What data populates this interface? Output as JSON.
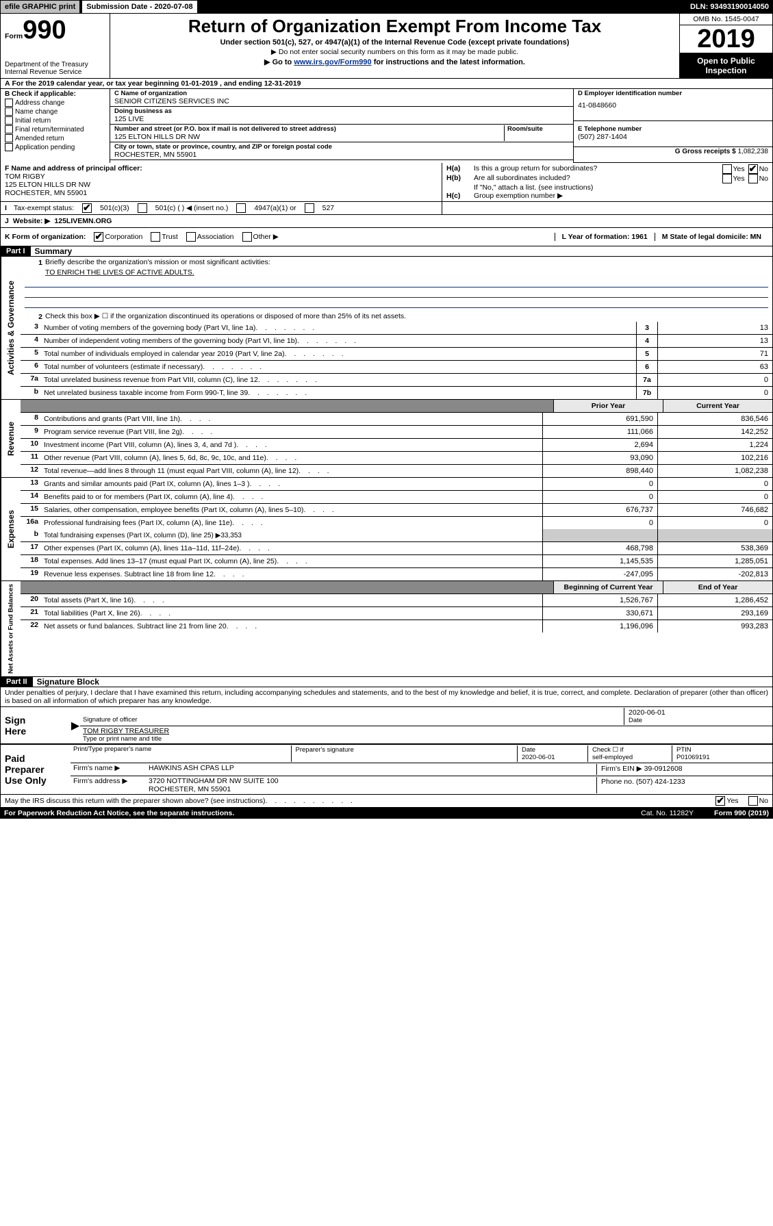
{
  "toolbar": {
    "efile": "efile GRAPHIC print",
    "submission_label": "Submission Date - 2020-07-08",
    "dln": "DLN: 93493190014050"
  },
  "header": {
    "form_label": "Form",
    "form_num": "990",
    "title": "Return of Organization Exempt From Income Tax",
    "subtitle1": "Under section 501(c), 527, or 4947(a)(1) of the Internal Revenue Code (except private foundations)",
    "subtitle2": "▶ Do not enter social security numbers on this form as it may be made public.",
    "subtitle3_pre": "▶ Go to ",
    "subtitle3_link": "www.irs.gov/Form990",
    "subtitle3_post": " for instructions and the latest information.",
    "dept1": "Department of the Treasury",
    "dept2": "Internal Revenue Service",
    "omb": "OMB No. 1545-0047",
    "year": "2019",
    "open_public": "Open to Public Inspection"
  },
  "row_A": {
    "label": "A",
    "text": "For the 2019 calendar year, or tax year beginning 01-01-2019    , and ending 12-31-2019"
  },
  "box_B": {
    "label": "B Check if applicable:",
    "items": [
      "Address change",
      "Name change",
      "Initial return",
      "Final return/terminated",
      "Amended return",
      "Application pending"
    ]
  },
  "box_C": {
    "name_lbl": "C Name of organization",
    "name": "SENIOR CITIZENS SERVICES INC",
    "dba_lbl": "Doing business as",
    "dba": "125 LIVE",
    "addr_lbl": "Number and street (or P.O. box if mail is not delivered to street address)",
    "room_lbl": "Room/suite",
    "addr": "125 ELTON HILLS DR NW",
    "city_lbl": "City or town, state or province, country, and ZIP or foreign postal code",
    "city": "ROCHESTER, MN  55901"
  },
  "box_D": {
    "lbl": "D Employer identification number",
    "val": "41-0848660"
  },
  "box_E": {
    "lbl": "E Telephone number",
    "val": "(507) 287-1404"
  },
  "box_G": {
    "lbl": "G Gross receipts $",
    "val": "1,082,238"
  },
  "box_F": {
    "lbl": "F Name and address of principal officer:",
    "name": "TOM RIGBY",
    "addr1": "125 ELTON HILLS DR NW",
    "addr2": "ROCHESTER, MN  55901"
  },
  "box_H": {
    "a_lbl": "H(a)",
    "a_txt": "Is this a group return for subordinates?",
    "b_lbl": "H(b)",
    "b_txt": "Are all subordinates included?",
    "note": "If \"No,\" attach a list. (see instructions)",
    "c_lbl": "H(c)",
    "c_txt": "Group exemption number ▶",
    "yes": "Yes",
    "no": "No"
  },
  "row_I": {
    "lbl": "I",
    "txt": "Tax-exempt status:",
    "o1": "501(c)(3)",
    "o2": "501(c) (   ) ◀ (insert no.)",
    "o3": "4947(a)(1) or",
    "o4": "527"
  },
  "row_J": {
    "lbl": "J",
    "txt": "Website: ▶",
    "val": "125LIVEMN.ORG"
  },
  "row_K": {
    "lbl": "K Form of organization:",
    "o1": "Corporation",
    "o2": "Trust",
    "o3": "Association",
    "o4": "Other ▶",
    "L": "L Year of formation: 1961",
    "M": "M State of legal domicile: MN"
  },
  "part1": {
    "label": "Part I",
    "title": "Summary"
  },
  "governance": {
    "line1_lbl": "1",
    "line1_txt": "Briefly describe the organization's mission or most significant activities:",
    "line1_val": "TO ENRICH THE LIVES OF ACTIVE ADULTS.",
    "line2_lbl": "2",
    "line2_txt": "Check this box ▶ ☐  if the organization discontinued its operations or disposed of more than 25% of its net assets.",
    "rows": [
      {
        "n": "3",
        "d": "Number of voting members of the governing body (Part VI, line 1a)",
        "box": "3",
        "v": "13"
      },
      {
        "n": "4",
        "d": "Number of independent voting members of the governing body (Part VI, line 1b)",
        "box": "4",
        "v": "13"
      },
      {
        "n": "5",
        "d": "Total number of individuals employed in calendar year 2019 (Part V, line 2a)",
        "box": "5",
        "v": "71"
      },
      {
        "n": "6",
        "d": "Total number of volunteers (estimate if necessary)",
        "box": "6",
        "v": "63"
      },
      {
        "n": "7a",
        "d": "Total unrelated business revenue from Part VIII, column (C), line 12",
        "box": "7a",
        "v": "0"
      },
      {
        "n": "b",
        "d": "Net unrelated business taxable income from Form 990-T, line 39",
        "box": "7b",
        "v": "0"
      }
    ]
  },
  "revenue": {
    "hdr_prior": "Prior Year",
    "hdr_current": "Current Year",
    "rows": [
      {
        "n": "8",
        "d": "Contributions and grants (Part VIII, line 1h)",
        "p": "691,590",
        "c": "836,546"
      },
      {
        "n": "9",
        "d": "Program service revenue (Part VIII, line 2g)",
        "p": "111,066",
        "c": "142,252"
      },
      {
        "n": "10",
        "d": "Investment income (Part VIII, column (A), lines 3, 4, and 7d )",
        "p": "2,694",
        "c": "1,224"
      },
      {
        "n": "11",
        "d": "Other revenue (Part VIII, column (A), lines 5, 6d, 8c, 9c, 10c, and 11e)",
        "p": "93,090",
        "c": "102,216"
      },
      {
        "n": "12",
        "d": "Total revenue—add lines 8 through 11 (must equal Part VIII, column (A), line 12)",
        "p": "898,440",
        "c": "1,082,238"
      }
    ]
  },
  "expenses": {
    "rows": [
      {
        "n": "13",
        "d": "Grants and similar amounts paid (Part IX, column (A), lines 1–3 )",
        "p": "0",
        "c": "0"
      },
      {
        "n": "14",
        "d": "Benefits paid to or for members (Part IX, column (A), line 4)",
        "p": "0",
        "c": "0"
      },
      {
        "n": "15",
        "d": "Salaries, other compensation, employee benefits (Part IX, column (A), lines 5–10)",
        "p": "676,737",
        "c": "746,682"
      },
      {
        "n": "16a",
        "d": "Professional fundraising fees (Part IX, column (A), line 11e)",
        "p": "0",
        "c": "0"
      }
    ],
    "line_b_n": "b",
    "line_b_d": "Total fundraising expenses (Part IX, column (D), line 25) ▶33,353",
    "rows2": [
      {
        "n": "17",
        "d": "Other expenses (Part IX, column (A), lines 11a–11d, 11f–24e)",
        "p": "468,798",
        "c": "538,369"
      },
      {
        "n": "18",
        "d": "Total expenses. Add lines 13–17 (must equal Part IX, column (A), line 25)",
        "p": "1,145,535",
        "c": "1,285,051"
      },
      {
        "n": "19",
        "d": "Revenue less expenses. Subtract line 18 from line 12",
        "p": "-247,095",
        "c": "-202,813"
      }
    ]
  },
  "netassets": {
    "hdr_begin": "Beginning of Current Year",
    "hdr_end": "End of Year",
    "rows": [
      {
        "n": "20",
        "d": "Total assets (Part X, line 16)",
        "p": "1,526,767",
        "c": "1,286,452"
      },
      {
        "n": "21",
        "d": "Total liabilities (Part X, line 26)",
        "p": "330,671",
        "c": "293,169"
      },
      {
        "n": "22",
        "d": "Net assets or fund balances. Subtract line 21 from line 20",
        "p": "1,196,096",
        "c": "993,283"
      }
    ]
  },
  "part2": {
    "label": "Part II",
    "title": "Signature Block",
    "declaration": "Under penalties of perjury, I declare that I have examined this return, including accompanying schedules and statements, and to the best of my knowledge and belief, it is true, correct, and complete. Declaration of preparer (other than officer) is based on all information of which preparer has any knowledge."
  },
  "sign": {
    "left1": "Sign",
    "left2": "Here",
    "sig_lbl": "Signature of officer",
    "date_lbl": "Date",
    "date_val": "2020-06-01",
    "name_val": "TOM RIGBY  TREASURER",
    "name_lbl": "Type or print name and title"
  },
  "paid": {
    "left1": "Paid",
    "left2": "Preparer",
    "left3": "Use Only",
    "h1": "Print/Type preparer's name",
    "h2": "Preparer's signature",
    "h3": "Date",
    "h3v": "2020-06-01",
    "h4a": "Check ☐ if",
    "h4b": "self-employed",
    "h5": "PTIN",
    "h5v": "P01069191",
    "firm_lbl": "Firm's name      ▶",
    "firm_val": "HAWKINS ASH CPAS LLP",
    "ein_lbl": "Firm's EIN ▶",
    "ein_val": "39-0912608",
    "addr_lbl": "Firm's address ▶",
    "addr_val1": "3720 NOTTINGHAM DR NW SUITE 100",
    "addr_val2": "ROCHESTER, MN  55901",
    "phone_lbl": "Phone no.",
    "phone_val": "(507) 424-1233"
  },
  "footer": {
    "discuss": "May the IRS discuss this return with the preparer shown above? (see instructions)",
    "yes": "Yes",
    "no": "No",
    "paperwork": "For Paperwork Reduction Act Notice, see the separate instructions.",
    "cat": "Cat. No. 11282Y",
    "form": "Form 990 (2019)"
  },
  "side_labels": {
    "gov": "Activities & Governance",
    "rev": "Revenue",
    "exp": "Expenses",
    "net": "Net Assets or Fund Balances"
  }
}
